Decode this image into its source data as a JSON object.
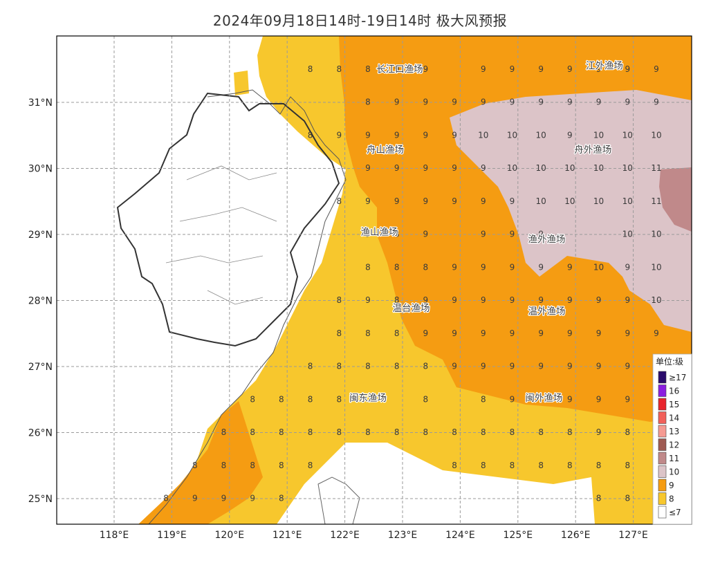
{
  "title": "2024年09月18日14时-19日14时 极大风预报",
  "axes": {
    "lon_labels": [
      "118°E",
      "119°E",
      "120°E",
      "121°E",
      "122°E",
      "123°E",
      "124°E",
      "125°E",
      "126°E",
      "127°E"
    ],
    "lat_labels": [
      "31°N",
      "30°N",
      "29°N",
      "28°N",
      "27°N",
      "26°N",
      "25°N"
    ]
  },
  "zones": [
    "长江口渔场",
    "江外渔场",
    "舟山渔场",
    "舟外渔场",
    "渔山渔场",
    "渔外渔场",
    "温台渔场",
    "温外渔场",
    "闽东渔场",
    "闽外渔场"
  ],
  "legend": {
    "title": "单位:级",
    "items": [
      {
        "label": "≥17",
        "color": "#2a0b6b"
      },
      {
        "label": "16",
        "color": "#8b1ee0"
      },
      {
        "label": "15",
        "color": "#e8242c"
      },
      {
        "label": "14",
        "color": "#f2605a"
      },
      {
        "label": "13",
        "color": "#f59a92"
      },
      {
        "label": "12",
        "color": "#9e5a52"
      },
      {
        "label": "11",
        "color": "#c0898a"
      },
      {
        "label": "10",
        "color": "#dcc4c8"
      },
      {
        "label": "9",
        "color": "#f59c12"
      },
      {
        "label": "8",
        "color": "#f7c72d"
      },
      {
        "label": "≤7",
        "color": "#ffffff"
      }
    ]
  },
  "grid_values": [
    {
      "lat": 31.5,
      "cols": [
        [
          121.4,
          "8"
        ],
        [
          121.9,
          "8"
        ],
        [
          122.4,
          "8"
        ],
        [
          122.9,
          "9"
        ],
        [
          123.4,
          "9"
        ],
        [
          124.4,
          "9"
        ],
        [
          124.9,
          "9"
        ],
        [
          125.4,
          "9"
        ],
        [
          125.9,
          "9"
        ],
        [
          126.4,
          "9"
        ],
        [
          126.9,
          "9"
        ],
        [
          127.4,
          "9"
        ]
      ]
    },
    {
      "lat": 31.0,
      "cols": [
        [
          122.4,
          "8"
        ],
        [
          122.9,
          "9"
        ],
        [
          123.4,
          "9"
        ],
        [
          123.9,
          "9"
        ],
        [
          124.4,
          "9"
        ],
        [
          124.9,
          "9"
        ],
        [
          125.4,
          "9"
        ],
        [
          125.9,
          "9"
        ],
        [
          126.4,
          "9"
        ],
        [
          126.9,
          "9"
        ],
        [
          127.4,
          "9"
        ]
      ]
    },
    {
      "lat": 30.5,
      "cols": [
        [
          121.4,
          "8"
        ],
        [
          121.9,
          "9"
        ],
        [
          122.4,
          "9"
        ],
        [
          122.9,
          "9"
        ],
        [
          123.4,
          "9"
        ],
        [
          123.9,
          "9"
        ],
        [
          124.4,
          "10"
        ],
        [
          124.9,
          "10"
        ],
        [
          125.4,
          "10"
        ],
        [
          125.9,
          "9"
        ],
        [
          126.4,
          "10"
        ],
        [
          126.9,
          "10"
        ],
        [
          127.4,
          "10"
        ]
      ]
    },
    {
      "lat": 30.0,
      "cols": [
        [
          122.4,
          "9"
        ],
        [
          122.9,
          "9"
        ],
        [
          123.4,
          "9"
        ],
        [
          123.9,
          "9"
        ],
        [
          124.4,
          "9"
        ],
        [
          124.9,
          "10"
        ],
        [
          125.4,
          "10"
        ],
        [
          125.9,
          "10"
        ],
        [
          126.4,
          "10"
        ],
        [
          126.9,
          "10"
        ],
        [
          127.4,
          "11"
        ]
      ]
    },
    {
      "lat": 29.5,
      "cols": [
        [
          121.9,
          "8"
        ],
        [
          122.4,
          "9"
        ],
        [
          122.9,
          "9"
        ],
        [
          123.4,
          "9"
        ],
        [
          123.9,
          "9"
        ],
        [
          124.4,
          "9"
        ],
        [
          124.9,
          "9"
        ],
        [
          125.4,
          "10"
        ],
        [
          125.9,
          "10"
        ],
        [
          126.4,
          "10"
        ],
        [
          126.9,
          "10"
        ],
        [
          127.4,
          "11"
        ]
      ]
    },
    {
      "lat": 29.0,
      "cols": [
        [
          122.4,
          "9"
        ],
        [
          122.9,
          "8"
        ],
        [
          123.4,
          "9"
        ],
        [
          124.4,
          "9"
        ],
        [
          124.9,
          "9"
        ],
        [
          125.4,
          "9"
        ],
        [
          126.9,
          "10"
        ],
        [
          127.4,
          "10"
        ]
      ]
    },
    {
      "lat": 28.5,
      "cols": [
        [
          122.4,
          "8"
        ],
        [
          122.9,
          "8"
        ],
        [
          123.4,
          "8"
        ],
        [
          123.9,
          "9"
        ],
        [
          124.4,
          "9"
        ],
        [
          124.9,
          "9"
        ],
        [
          125.4,
          "9"
        ],
        [
          125.9,
          "9"
        ],
        [
          126.4,
          "10"
        ],
        [
          126.9,
          "9"
        ],
        [
          127.4,
          "10"
        ]
      ]
    },
    {
      "lat": 28.0,
      "cols": [
        [
          121.9,
          "8"
        ],
        [
          122.4,
          "9"
        ],
        [
          122.9,
          "8"
        ],
        [
          123.4,
          "9"
        ],
        [
          123.9,
          "9"
        ],
        [
          124.4,
          "9"
        ],
        [
          124.9,
          "9"
        ],
        [
          125.4,
          "9"
        ],
        [
          125.9,
          "9"
        ],
        [
          126.4,
          "9"
        ],
        [
          126.9,
          "9"
        ],
        [
          127.4,
          "10"
        ]
      ]
    },
    {
      "lat": 27.5,
      "cols": [
        [
          121.9,
          "8"
        ],
        [
          122.4,
          "8"
        ],
        [
          122.9,
          "8"
        ],
        [
          123.4,
          "9"
        ],
        [
          123.9,
          "9"
        ],
        [
          124.4,
          "9"
        ],
        [
          124.9,
          "9"
        ],
        [
          125.4,
          "9"
        ],
        [
          125.9,
          "9"
        ],
        [
          126.4,
          "9"
        ],
        [
          126.9,
          "9"
        ],
        [
          127.4,
          "9"
        ]
      ]
    },
    {
      "lat": 27.0,
      "cols": [
        [
          121.4,
          "8"
        ],
        [
          121.9,
          "8"
        ],
        [
          122.4,
          "8"
        ],
        [
          122.9,
          "8"
        ],
        [
          123.4,
          "8"
        ],
        [
          123.9,
          "9"
        ],
        [
          124.4,
          "9"
        ],
        [
          124.9,
          "9"
        ],
        [
          125.4,
          "9"
        ],
        [
          125.9,
          "9"
        ],
        [
          126.4,
          "9"
        ],
        [
          126.9,
          "9"
        ]
      ]
    },
    {
      "lat": 26.5,
      "cols": [
        [
          120.4,
          "8"
        ],
        [
          120.9,
          "8"
        ],
        [
          121.4,
          "8"
        ],
        [
          121.9,
          "8"
        ],
        [
          123.4,
          "8"
        ],
        [
          124.4,
          "8"
        ],
        [
          124.9,
          "9"
        ],
        [
          125.9,
          "9"
        ],
        [
          126.4,
          "9"
        ],
        [
          126.9,
          "9"
        ]
      ]
    },
    {
      "lat": 26.0,
      "cols": [
        [
          119.9,
          "8"
        ],
        [
          120.4,
          "8"
        ],
        [
          120.9,
          "8"
        ],
        [
          121.4,
          "8"
        ],
        [
          121.9,
          "8"
        ],
        [
          122.4,
          "8"
        ],
        [
          122.9,
          "8"
        ],
        [
          123.4,
          "8"
        ],
        [
          123.9,
          "8"
        ],
        [
          124.4,
          "8"
        ],
        [
          124.9,
          "8"
        ],
        [
          125.4,
          "8"
        ],
        [
          125.9,
          "8"
        ],
        [
          126.4,
          "9"
        ],
        [
          126.9,
          "8"
        ]
      ]
    },
    {
      "lat": 25.5,
      "cols": [
        [
          119.4,
          "8"
        ],
        [
          119.9,
          "8"
        ],
        [
          120.4,
          "8"
        ],
        [
          120.9,
          "8"
        ],
        [
          121.4,
          "8"
        ],
        [
          123.9,
          "8"
        ],
        [
          124.4,
          "8"
        ],
        [
          124.9,
          "8"
        ],
        [
          125.4,
          "8"
        ],
        [
          125.9,
          "8"
        ],
        [
          126.4,
          "8"
        ],
        [
          126.9,
          "8"
        ]
      ]
    },
    {
      "lat": 25.0,
      "cols": [
        [
          118.9,
          "8"
        ],
        [
          119.4,
          "9"
        ],
        [
          119.9,
          "9"
        ],
        [
          120.4,
          "9"
        ],
        [
          120.9,
          "8"
        ],
        [
          126.4,
          "8"
        ],
        [
          126.9,
          "8"
        ]
      ]
    }
  ]
}
